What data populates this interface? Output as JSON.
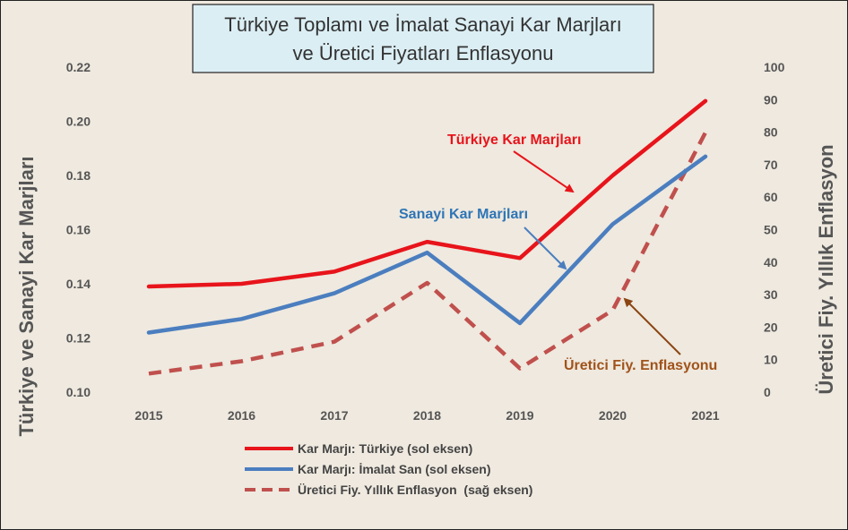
{
  "chart_data": {
    "type": "line",
    "title_line1": "Türkiye Toplamı ve İmalat Sanayi Kar Marjları",
    "title_line2": "ve Üretici Fiyatları Enflasyonu",
    "x": [
      "2015",
      "2016",
      "2017",
      "2018",
      "2019",
      "2020",
      "2021"
    ],
    "ylabel_left": "Türkiye ve Sanayi Kar Marjları",
    "ylabel_right": "Üretici Fiy. Yıllık Enflasyon",
    "ylim_left": [
      0.1,
      0.22
    ],
    "yticks_left": [
      "0.22",
      "0.20",
      "0.18",
      "0.16",
      "0.14",
      "0.12",
      "0.10"
    ],
    "ylim_right": [
      0,
      100
    ],
    "yticks_right": [
      "100",
      "90",
      "80",
      "70",
      "60",
      "50",
      "40",
      "30",
      "20",
      "10",
      "0"
    ],
    "grid": false,
    "legend_placement": "bottom",
    "series": [
      {
        "name": "Kar Marjı: Türkiye (sol eksen)",
        "axis": "left",
        "color": "#e8141b",
        "style": "solid",
        "values": [
          0.139,
          0.14,
          0.1445,
          0.1555,
          0.1495,
          0.18,
          0.2075
        ]
      },
      {
        "name": "Kar Marjı: İmalat San (sol eksen)",
        "axis": "left",
        "color": "#4b7ebf",
        "style": "solid",
        "values": [
          0.122,
          0.127,
          0.1365,
          0.1515,
          0.1255,
          0.162,
          0.187
        ]
      },
      {
        "name": "Üretici Fiy. Yıllık Enflasyon  (sağ eksen)",
        "axis": "right",
        "color": "#c0504d",
        "style": "dashed",
        "values": [
          5.7,
          9.5,
          15.5,
          33.6,
          7.3,
          25.2,
          79.9
        ]
      }
    ],
    "annotations": [
      {
        "text": "Türkiye Kar Marjları",
        "color": "#e8141b"
      },
      {
        "text": "Sanayi Kar Marjları",
        "color": "#2e75b6"
      },
      {
        "text": "Üretici Fiy. Enflasyonu",
        "color": "#a0531a"
      }
    ]
  }
}
